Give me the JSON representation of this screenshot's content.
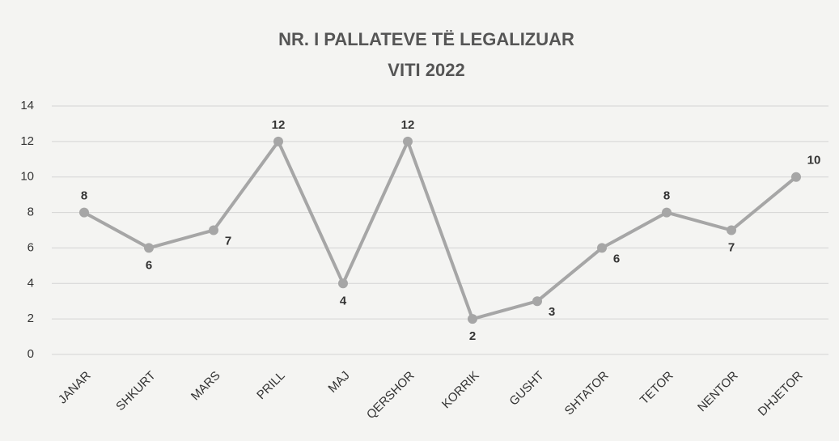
{
  "chart_data": {
    "type": "line",
    "title": "NR. I PALLATEVE TË LEGALIZUAR",
    "subtitle": "VITI 2022",
    "categories": [
      "JANAR",
      "SHKURT",
      "MARS",
      "PRILL",
      "MAJ",
      "QERSHOR",
      "KORRIK",
      "GUSHT",
      "SHTATOR",
      "TETOR",
      "NENTOR",
      "DHJETOR"
    ],
    "values": [
      8,
      6,
      7,
      12,
      4,
      12,
      2,
      3,
      6,
      8,
      7,
      10
    ],
    "color": "#a6a6a6",
    "ylim": [
      0,
      14
    ],
    "yticks": [
      0,
      2,
      4,
      6,
      8,
      10,
      12,
      14
    ],
    "grid": true
  }
}
